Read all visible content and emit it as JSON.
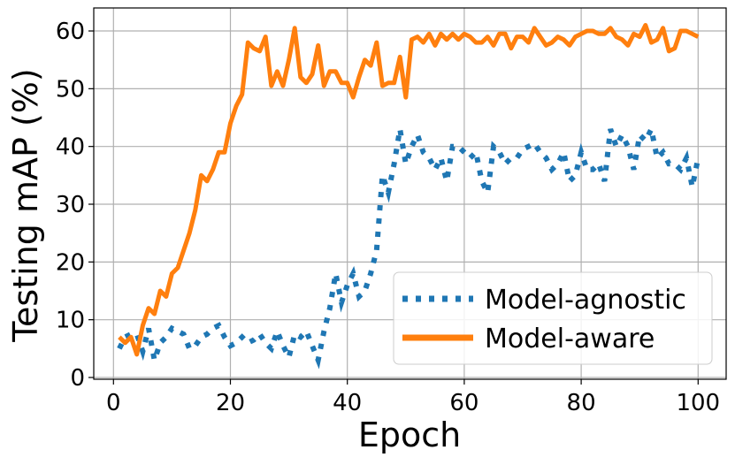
{
  "chart_data": {
    "type": "line",
    "title": "",
    "xlabel": "Epoch",
    "ylabel": "Testing mAP (%)",
    "xlim": [
      -3,
      105
    ],
    "ylim": [
      -0.5,
      64
    ],
    "xticks": [
      0,
      20,
      40,
      60,
      80,
      100
    ],
    "yticks": [
      0,
      10,
      20,
      30,
      40,
      50,
      60
    ],
    "grid": true,
    "legend": "lower-right",
    "x": [
      1,
      2,
      3,
      4,
      5,
      6,
      7,
      8,
      9,
      10,
      11,
      12,
      13,
      14,
      15,
      16,
      17,
      18,
      19,
      20,
      21,
      22,
      23,
      24,
      25,
      26,
      27,
      28,
      29,
      30,
      31,
      32,
      33,
      34,
      35,
      36,
      37,
      38,
      39,
      40,
      41,
      42,
      43,
      44,
      45,
      46,
      47,
      48,
      49,
      50,
      51,
      52,
      53,
      54,
      55,
      56,
      57,
      58,
      59,
      60,
      61,
      62,
      63,
      64,
      65,
      66,
      67,
      68,
      69,
      70,
      71,
      72,
      73,
      74,
      75,
      76,
      77,
      78,
      79,
      80,
      81,
      82,
      83,
      84,
      85,
      86,
      87,
      88,
      89,
      90,
      91,
      92,
      93,
      94,
      95,
      96,
      97,
      98,
      99,
      100
    ],
    "series": [
      {
        "name": "Model-agnostic",
        "color": "#1f77b4",
        "style": "dotted",
        "values": [
          5,
          7,
          7.5,
          7.5,
          4.5,
          8.5,
          3,
          6,
          7,
          8.5,
          8,
          7.5,
          5,
          5.5,
          7,
          7.5,
          8.5,
          9,
          7,
          5.5,
          6,
          7,
          6,
          6.5,
          7.5,
          6,
          5,
          8,
          5.5,
          3.5,
          7.5,
          7,
          8,
          5.5,
          3,
          8,
          12,
          18,
          13,
          16,
          18,
          14,
          15,
          18,
          22,
          35,
          32,
          37,
          43,
          37,
          40,
          42,
          39,
          38,
          36,
          38,
          34,
          40,
          40,
          39,
          38,
          39,
          34,
          32,
          40,
          39,
          37,
          38,
          38,
          39.5,
          40,
          40.5,
          39,
          38,
          36,
          37,
          39,
          34,
          35,
          39,
          36,
          36,
          37,
          34,
          43,
          40,
          42,
          40,
          36,
          42,
          41,
          43,
          38,
          39,
          37,
          37,
          36,
          38,
          33,
          38
        ]
      },
      {
        "name": "Model-aware",
        "color": "#ff7f0e",
        "style": "solid",
        "values": [
          7,
          6,
          7,
          4,
          9,
          12,
          11,
          15,
          14,
          18,
          19,
          22,
          25,
          29,
          35,
          34,
          36,
          39,
          39,
          44,
          47,
          49,
          58,
          57,
          56.5,
          59,
          50.5,
          53,
          50.5,
          55,
          60.5,
          52,
          51,
          52.5,
          57.5,
          50.5,
          53,
          53,
          51,
          51,
          48.5,
          52,
          55,
          54,
          58,
          50.5,
          51,
          51,
          55.5,
          48.5,
          58.5,
          59,
          58,
          59.5,
          57.5,
          59.5,
          58.5,
          59.5,
          58.5,
          59.5,
          59,
          58,
          58,
          59,
          57.5,
          59.5,
          59.5,
          57,
          59,
          59,
          58,
          60.5,
          59,
          57.5,
          58,
          59,
          58.5,
          57.5,
          59,
          59.5,
          60,
          60,
          59.5,
          59.5,
          60.5,
          59,
          58.5,
          57.5,
          59.5,
          59,
          61,
          58,
          58.5,
          60.5,
          56.5,
          57,
          60,
          60,
          59.5,
          59
        ]
      }
    ]
  }
}
